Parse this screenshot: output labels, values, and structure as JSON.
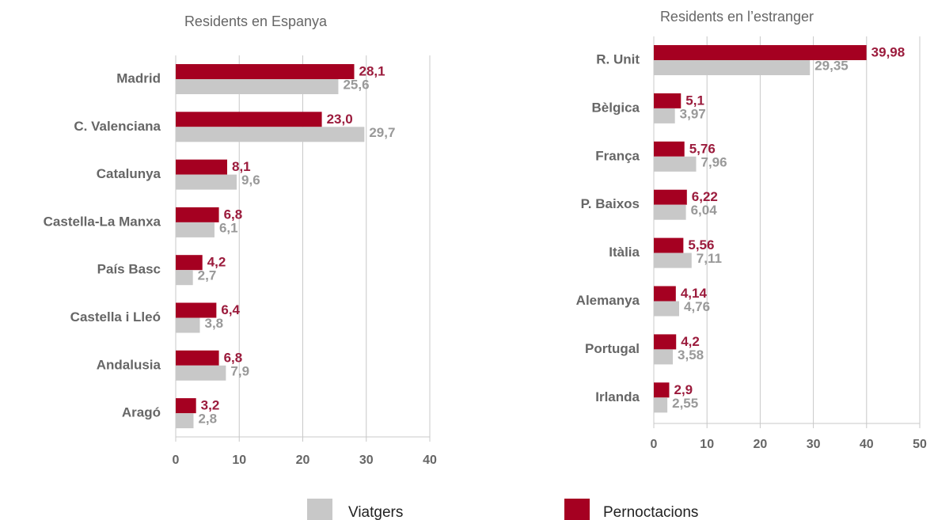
{
  "chart_data": [
    {
      "type": "bar",
      "orientation": "horizontal",
      "subtitle": "Residents en Espanya",
      "categories": [
        "Madrid",
        "C. Valenciana",
        "Catalunya",
        "Castella-La Manxa",
        "País Basc",
        "Castella i Lleó",
        "Andalusia",
        "Aragó"
      ],
      "series": [
        {
          "name": "Pernoctacions",
          "color": "#a50021",
          "label_color": "#9b1b3c",
          "values": [
            28.1,
            23.0,
            8.1,
            6.8,
            4.2,
            6.4,
            6.8,
            3.2
          ],
          "value_labels": [
            "28,1",
            "23,0",
            "8,1",
            "6,8",
            "4,2",
            "6,4",
            "6,8",
            "3,2"
          ]
        },
        {
          "name": "Viatgers",
          "color": "#c8c8c8",
          "label_color": "#999999",
          "values": [
            25.6,
            29.7,
            9.6,
            6.1,
            2.7,
            3.8,
            7.9,
            2.8
          ],
          "value_labels": [
            "25,6",
            "29,7",
            "9,6",
            "6,1",
            "2,7",
            "3,8",
            "7,9",
            "2,8"
          ]
        }
      ],
      "xlim": [
        0,
        40
      ],
      "xticks": [
        0,
        10,
        20,
        30,
        40
      ],
      "grid": true
    },
    {
      "type": "bar",
      "orientation": "horizontal",
      "subtitle": "Residents en l’estranger",
      "categories": [
        "R. Unit",
        "Bèlgica",
        "França",
        "P. Baixos",
        "Itàlia",
        "Alemanya",
        "Portugal",
        "Irlanda"
      ],
      "series": [
        {
          "name": "Pernoctacions",
          "color": "#a50021",
          "label_color": "#9b1b3c",
          "values": [
            39.98,
            5.1,
            5.76,
            6.22,
            5.56,
            4.14,
            4.2,
            2.9
          ],
          "value_labels": [
            "39,98",
            "5,1",
            "5,76",
            "6,22",
            "5,56",
            "4,14",
            "4,2",
            "2,9"
          ]
        },
        {
          "name": "Viatgers",
          "color": "#c8c8c8",
          "label_color": "#999999",
          "values": [
            29.35,
            3.97,
            7.96,
            6.04,
            7.11,
            4.76,
            3.58,
            2.55
          ],
          "value_labels": [
            "29,35",
            "3,97",
            "7,96",
            "6,04",
            "7,11",
            "4,76",
            "3,58",
            "2,55"
          ]
        }
      ],
      "xlim": [
        0,
        50
      ],
      "xticks": [
        0,
        10,
        20,
        30,
        40,
        50
      ],
      "grid": true
    }
  ]
}
